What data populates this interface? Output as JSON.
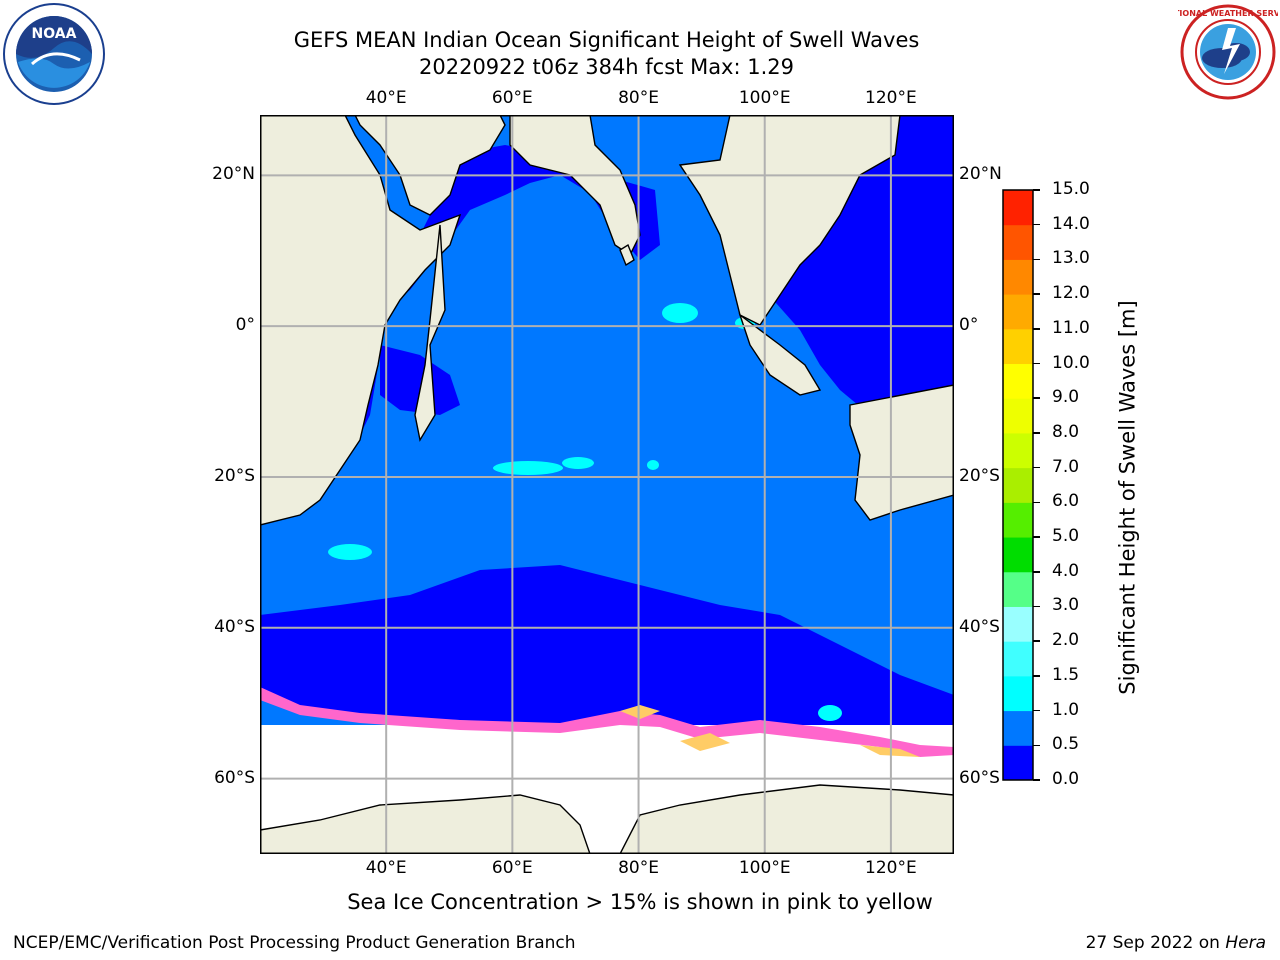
{
  "title": {
    "line1": "GEFS MEAN Indian Ocean Significant Height of Swell Waves",
    "line2": "20220922 t06z 384h fcst   Max: 1.29"
  },
  "map": {
    "lon_range": [
      20,
      130
    ],
    "lat_range": [
      -70,
      28
    ],
    "lon_ticks": [
      "40°E",
      "60°E",
      "80°E",
      "100°E",
      "120°E"
    ],
    "lat_ticks": [
      "20°N",
      "0°",
      "20°S",
      "40°S",
      "60°S"
    ],
    "colors": {
      "land": "#eeeedd",
      "ocean_0_0.5": "#0000ff",
      "ocean_0.5_1.0": "#0078ff",
      "ocean_1.0_1.5": "#00ffff",
      "ocean_1.5_2.0": "#40ffff",
      "sea_ice": "#ff66cc",
      "ice_shelf": "#ffffff",
      "grid": "#b0b0b0"
    }
  },
  "colorbar": {
    "label": "Significant Height of Swell Waves [m]",
    "ticks": [
      "0.0",
      "0.5",
      "1.0",
      "1.5",
      "2.0",
      "3.0",
      "4.0",
      "5.0",
      "6.0",
      "7.0",
      "8.0",
      "9.0",
      "10.0",
      "11.0",
      "12.0",
      "13.0",
      "14.0",
      "15.0"
    ],
    "colors": [
      "#0000ff",
      "#0078ff",
      "#00ffff",
      "#40ffff",
      "#99ffff",
      "#55ff88",
      "#00dd00",
      "#55ee00",
      "#aaee00",
      "#ccff00",
      "#eeff00",
      "#ffff00",
      "#ffd000",
      "#ffaa00",
      "#ff8800",
      "#ff5500",
      "#ff2200"
    ]
  },
  "logos": {
    "left": {
      "icon": "noaa-logo",
      "text": "NOAA"
    },
    "right": {
      "icon": "nws-logo",
      "text": "NATIONAL WEATHER SERVICE"
    }
  },
  "caption": "Sea Ice Concentration > 15% is shown in pink to yellow",
  "footer": {
    "left": "NCEP/EMC/Verification Post Processing Product Generation Branch",
    "right_prefix": "27 Sep 2022 on ",
    "right_host": "Hera"
  }
}
